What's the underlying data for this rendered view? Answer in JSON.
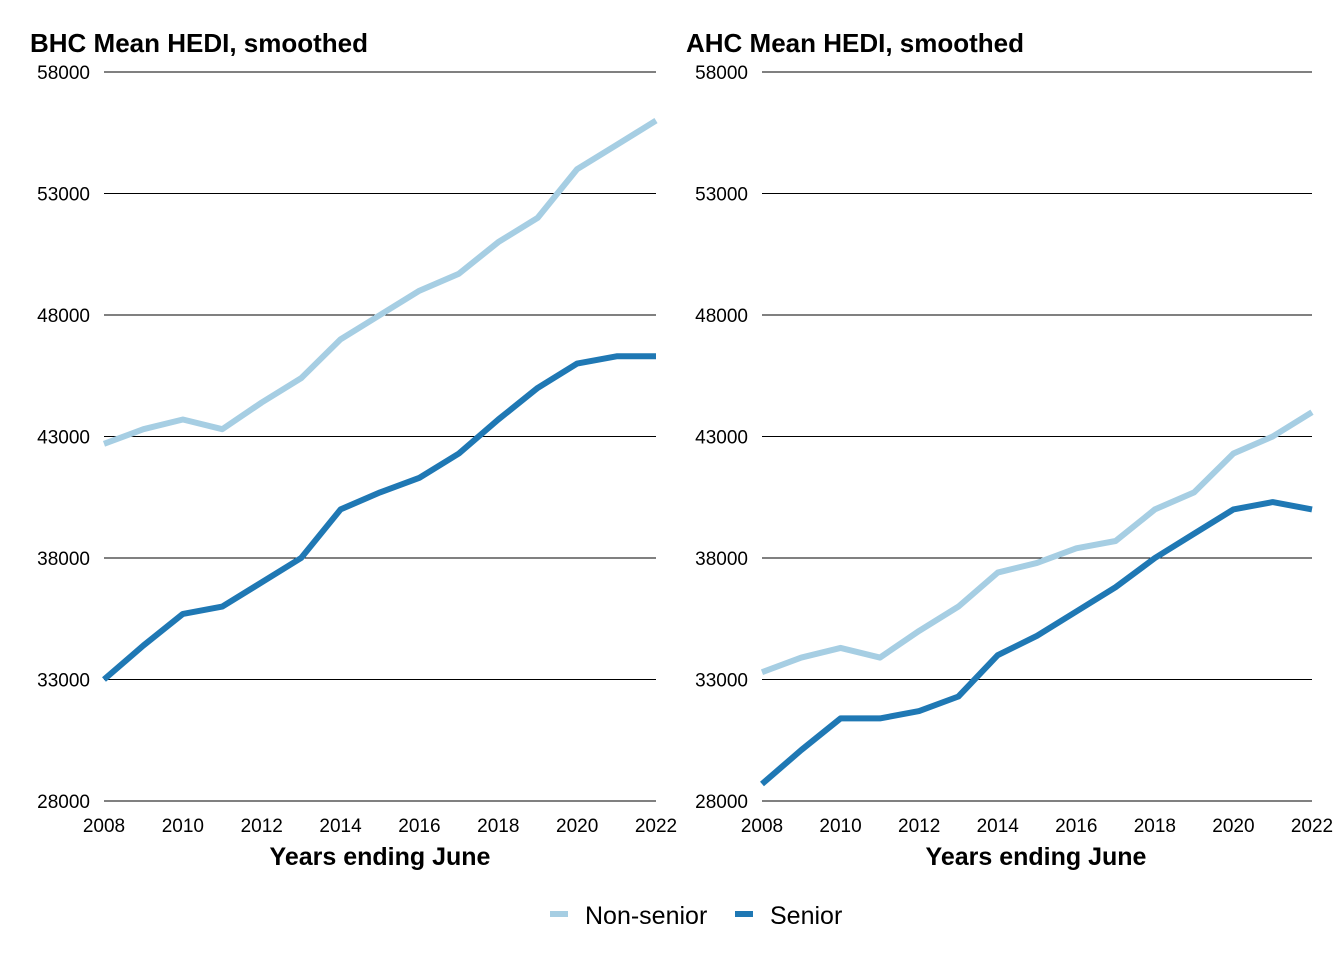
{
  "chart_data": [
    {
      "type": "line",
      "title": "BHC Mean HEDI, smoothed",
      "xlabel": "Years ending June",
      "ylabel": "",
      "x": [
        2008,
        2009,
        2010,
        2011,
        2012,
        2013,
        2014,
        2015,
        2016,
        2017,
        2018,
        2019,
        2020,
        2021,
        2022
      ],
      "xlim": [
        2008,
        2022
      ],
      "ylim": [
        28000,
        58000
      ],
      "xticks": [
        2008,
        2010,
        2012,
        2014,
        2016,
        2018,
        2020,
        2022
      ],
      "yticks": [
        28000,
        33000,
        38000,
        43000,
        48000,
        53000,
        58000
      ],
      "grid": true,
      "series": [
        {
          "name": "Non-senior",
          "color": "#a6cee3",
          "values": [
            42700,
            43300,
            43700,
            43300,
            44400,
            45400,
            47000,
            48000,
            49000,
            49700,
            51000,
            52000,
            54000,
            55000,
            56000
          ]
        },
        {
          "name": "Senior",
          "color": "#1f78b4",
          "values": [
            33000,
            34400,
            35700,
            36000,
            37000,
            38000,
            40000,
            40700,
            41300,
            42300,
            43700,
            45000,
            46000,
            46300,
            46300
          ]
        }
      ]
    },
    {
      "type": "line",
      "title": "AHC Mean HEDI, smoothed",
      "xlabel": "Years ending June",
      "ylabel": "",
      "x": [
        2008,
        2009,
        2010,
        2011,
        2012,
        2013,
        2014,
        2015,
        2016,
        2017,
        2018,
        2019,
        2020,
        2021,
        2022
      ],
      "xlim": [
        2008,
        2022
      ],
      "ylim": [
        28000,
        58000
      ],
      "xticks": [
        2008,
        2010,
        2012,
        2014,
        2016,
        2018,
        2020,
        2022
      ],
      "yticks": [
        28000,
        33000,
        38000,
        43000,
        48000,
        53000,
        58000
      ],
      "grid": true,
      "series": [
        {
          "name": "Non-senior",
          "color": "#a6cee3",
          "values": [
            33300,
            33900,
            34300,
            33900,
            35000,
            36000,
            37400,
            37800,
            38400,
            38700,
            40000,
            40700,
            42300,
            43000,
            44000
          ]
        },
        {
          "name": "Senior",
          "color": "#1f78b4",
          "values": [
            28700,
            30100,
            31400,
            31400,
            31700,
            32300,
            34000,
            34800,
            35800,
            36800,
            38000,
            39000,
            40000,
            40300,
            40000
          ]
        }
      ]
    }
  ],
  "legend": {
    "position": "bottom",
    "items": [
      {
        "label": "Non-senior",
        "color": "#a6cee3"
      },
      {
        "label": "Senior",
        "color": "#1f78b4"
      }
    ]
  }
}
